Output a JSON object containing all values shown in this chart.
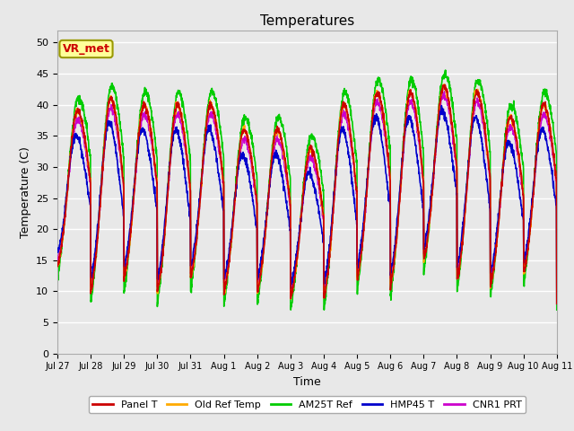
{
  "title": "Temperatures",
  "xlabel": "Time",
  "ylabel": "Temperature (C)",
  "annotation": "VR_met",
  "annotation_color": "#cc0000",
  "annotation_bg": "#ffff99",
  "annotation_border": "#999900",
  "ylim": [
    0,
    52
  ],
  "yticks": [
    0,
    5,
    10,
    15,
    20,
    25,
    30,
    35,
    40,
    45,
    50
  ],
  "plot_bg": "#e8e8e8",
  "fig_bg": "#e8e8e8",
  "grid_color": "#ffffff",
  "series_colors": {
    "Panel_T": "#cc0000",
    "Old_Ref_Temp": "#ffaa00",
    "AM25T_Ref": "#00cc00",
    "HMP45_T": "#0000cc",
    "CNR1_PRT": "#cc00cc"
  },
  "series_lw": 1.2,
  "legend_labels": [
    "Panel T",
    "Old Ref Temp",
    "AM25T Ref",
    "HMP45 T",
    "CNR1 PRT"
  ],
  "legend_colors": [
    "#cc0000",
    "#ffaa00",
    "#00cc00",
    "#0000cc",
    "#cc00cc"
  ],
  "x_tick_labels": [
    "Jul 27",
    "Jul 28",
    "Jul 29",
    "Jul 30",
    "Jul 31",
    "Aug 1",
    "Aug 2",
    "Aug 3",
    "Aug 4",
    "Aug 5",
    "Aug 6",
    "Aug 7",
    "Aug 8",
    "Aug 9",
    "Aug 10",
    "Aug 11"
  ],
  "n_days": 15
}
